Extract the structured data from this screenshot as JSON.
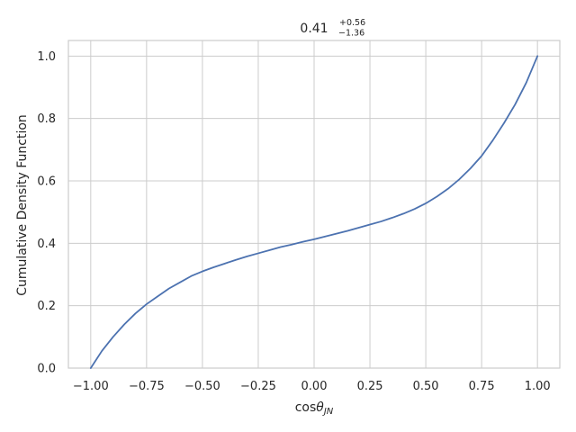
{
  "chart_data": {
    "type": "line",
    "title": {
      "value": "0.41",
      "upper": "+0.56",
      "lower": "−1.36"
    },
    "xlabel": {
      "prefix": "cos",
      "symbol": "θ",
      "subscript": "JN"
    },
    "ylabel": "Cumulative Density Function",
    "xlim": [
      -1.1,
      1.1
    ],
    "ylim": [
      0,
      1.05
    ],
    "grid": true,
    "xticks": [
      -1.0,
      -0.75,
      -0.5,
      -0.25,
      0.0,
      0.25,
      0.5,
      0.75,
      1.0
    ],
    "xtick_labels": [
      "−1.00",
      "−0.75",
      "−0.50",
      "−0.25",
      "0.00",
      "0.25",
      "0.50",
      "0.75",
      "1.00"
    ],
    "yticks": [
      0.0,
      0.2,
      0.4,
      0.6,
      0.8,
      1.0
    ],
    "ytick_labels": [
      "0.0",
      "0.2",
      "0.4",
      "0.6",
      "0.8",
      "1.0"
    ],
    "series": [
      {
        "color": "#4c72b0",
        "x": [
          -1.0,
          -0.95,
          -0.9,
          -0.85,
          -0.8,
          -0.75,
          -0.7,
          -0.65,
          -0.6,
          -0.55,
          -0.5,
          -0.45,
          -0.4,
          -0.35,
          -0.3,
          -0.25,
          -0.2,
          -0.15,
          -0.1,
          -0.05,
          0.0,
          0.05,
          0.1,
          0.15,
          0.2,
          0.25,
          0.3,
          0.35,
          0.4,
          0.45,
          0.5,
          0.55,
          0.6,
          0.65,
          0.7,
          0.75,
          0.8,
          0.85,
          0.9,
          0.95,
          1.0
        ],
        "y": [
          0.0,
          0.055,
          0.1,
          0.14,
          0.175,
          0.205,
          0.23,
          0.255,
          0.275,
          0.295,
          0.31,
          0.323,
          0.335,
          0.347,
          0.358,
          0.368,
          0.378,
          0.388,
          0.396,
          0.405,
          0.413,
          0.422,
          0.431,
          0.44,
          0.45,
          0.46,
          0.47,
          0.482,
          0.495,
          0.51,
          0.528,
          0.55,
          0.575,
          0.605,
          0.64,
          0.68,
          0.73,
          0.785,
          0.845,
          0.915,
          1.0
        ]
      }
    ]
  }
}
